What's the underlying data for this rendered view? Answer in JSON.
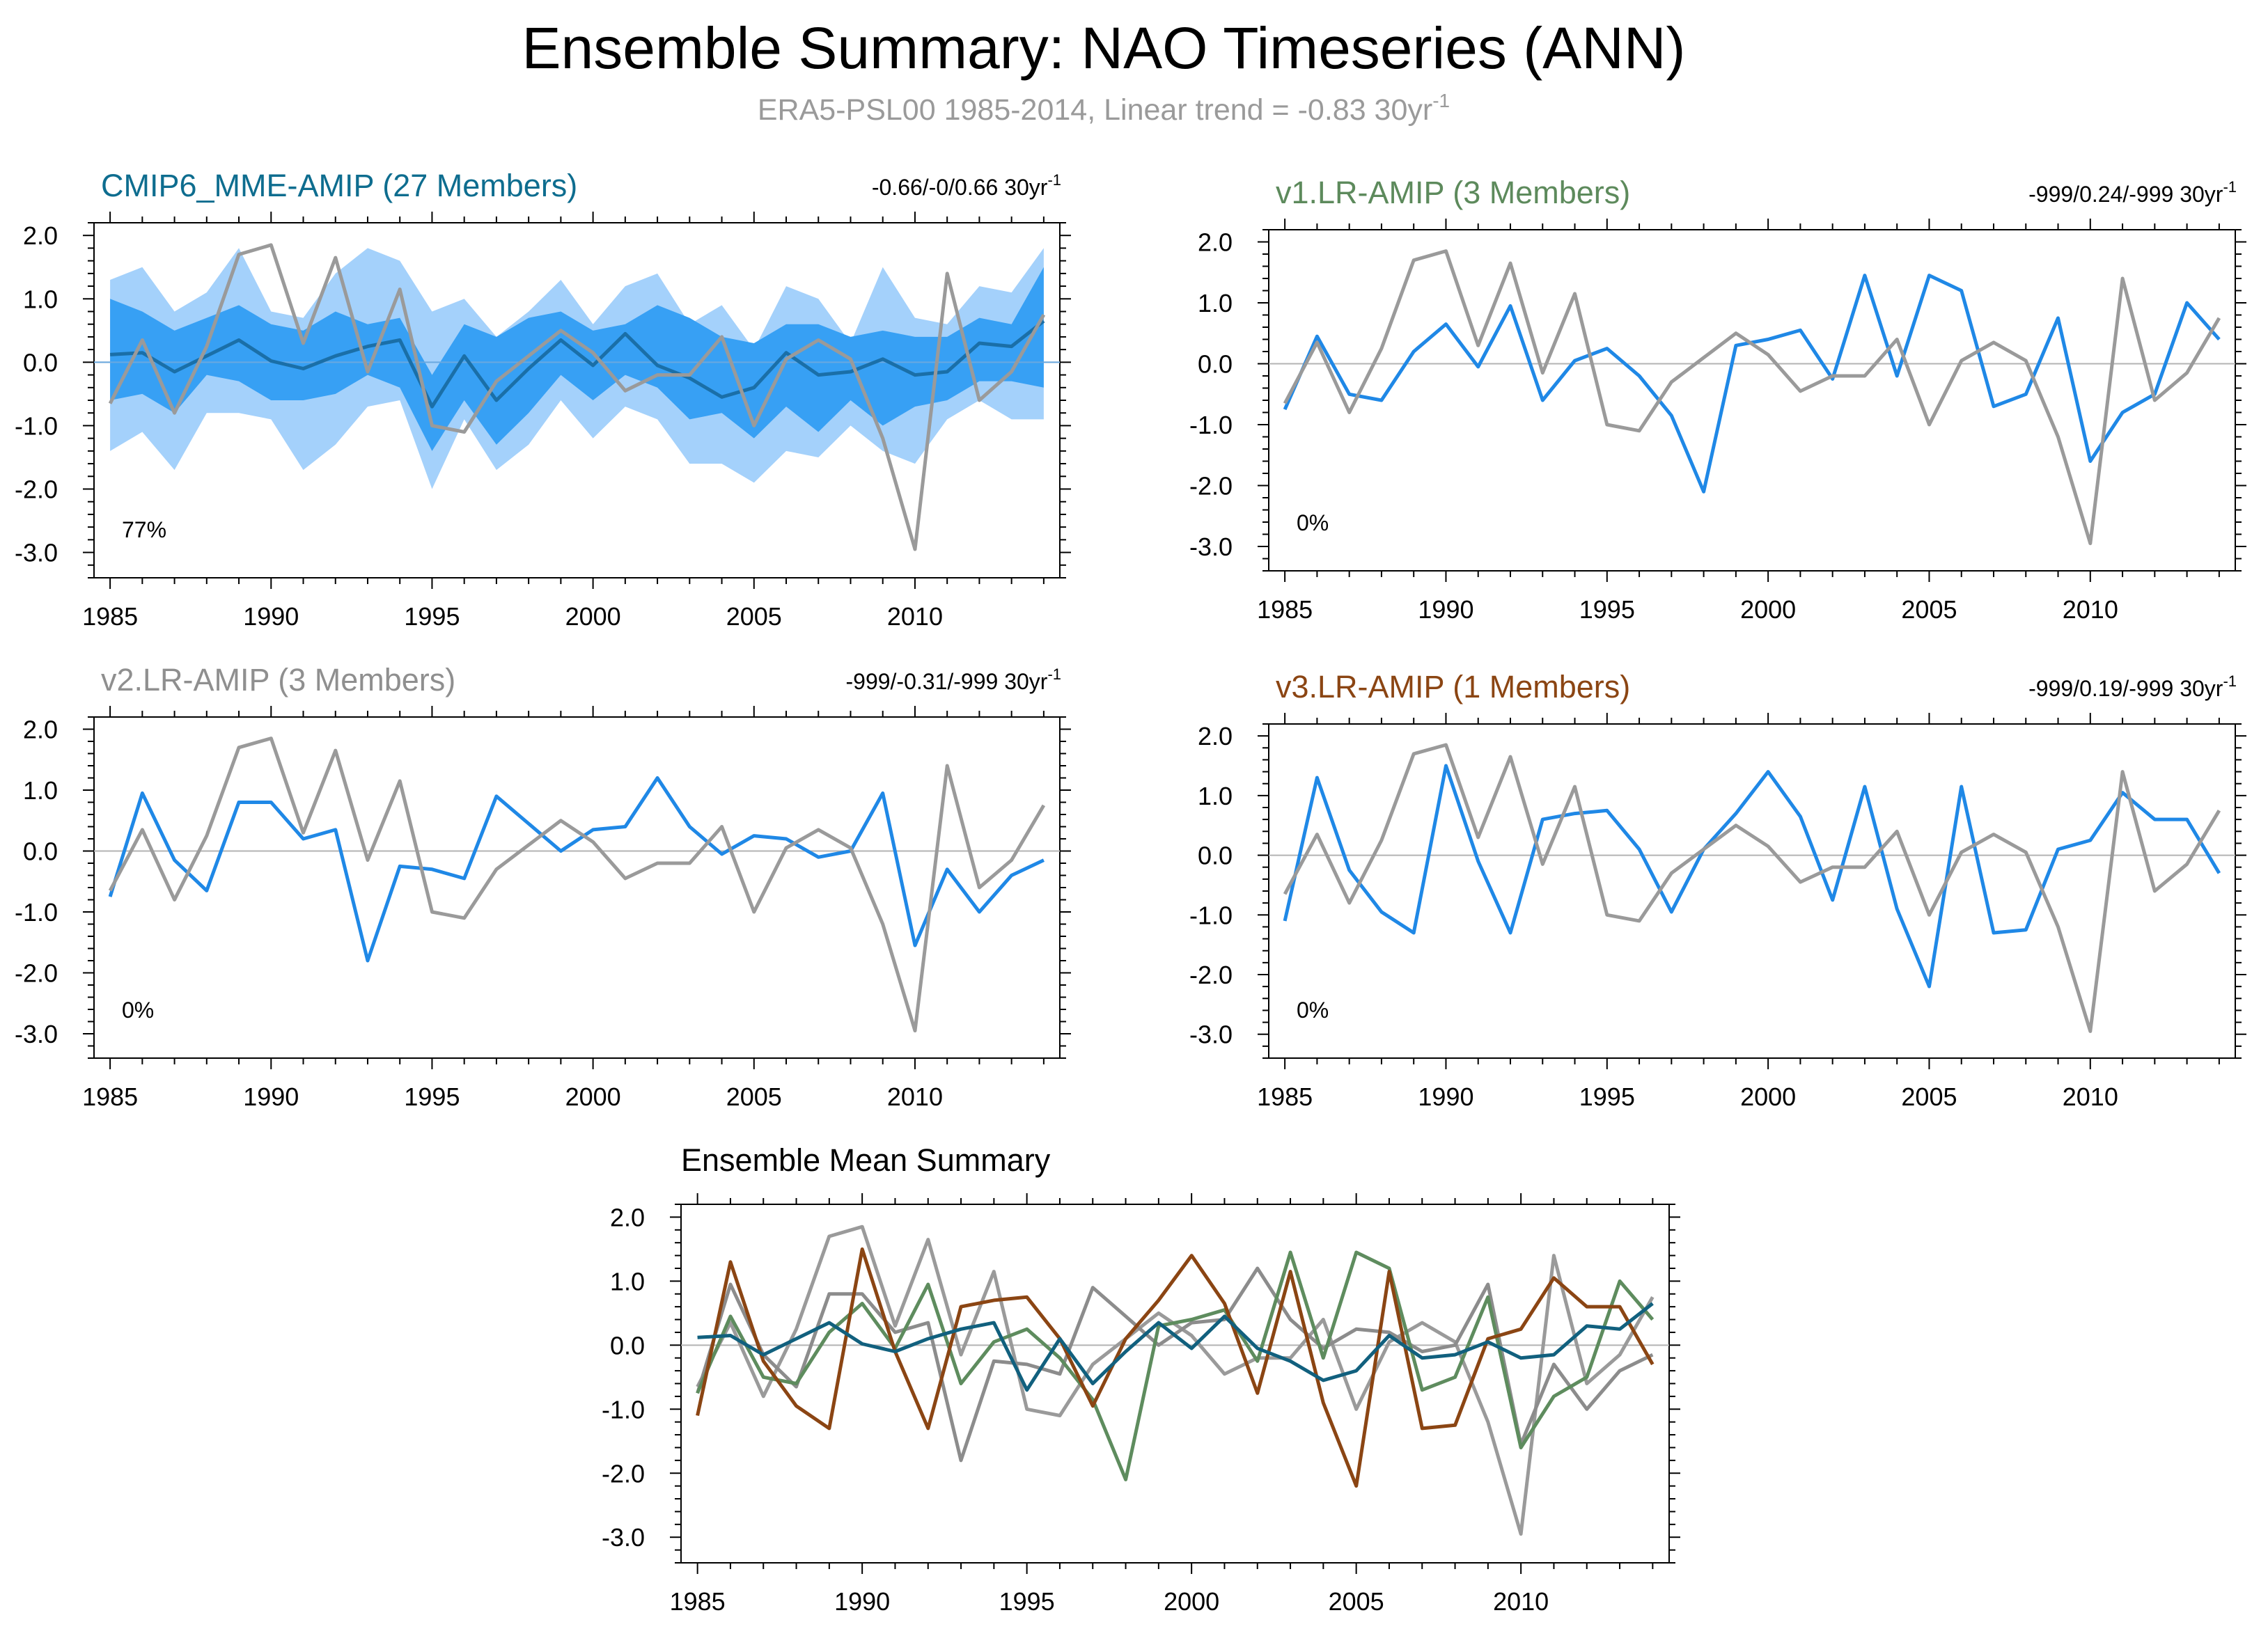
{
  "page": {
    "title": "Ensemble Summary: NAO Timeseries (ANN)",
    "subtitle": "ERA5-PSL00 1985-2014, Linear trend = -0.83 30yr",
    "subtitle_sup": "-1"
  },
  "colors": {
    "obs": "#9a9a9a",
    "blue": "#1f88e6",
    "band_outer": "#a4d1fb",
    "band_inner": "#37a0f4",
    "mme_mean": "#1a6fa8",
    "title_mme": "#0e6d8f",
    "title_v1": "#5d8a5c",
    "title_v2": "#8f8f8f",
    "title_v3": "#8b4513",
    "summary_mme": "#11607e",
    "summary_v1": "#5e8c5e",
    "summary_v2": "#8c8c8c",
    "summary_v3": "#8b4513"
  },
  "chart_data": [
    {
      "id": "mme",
      "type": "line",
      "title": "CMIP6_MME-AMIP (27 Members)",
      "title_color": "#0e6d8f",
      "trend": "-0.66/-0/0.66 30yr",
      "trend_sup": "-1",
      "percent": "77%",
      "ylim": [
        -3.4,
        2.2
      ],
      "yticks": [
        "2.0",
        "1.0",
        "0.0",
        "-1.0",
        "-2.0",
        "-3.0"
      ],
      "xticks": [
        "1985",
        "1990",
        "1995",
        "2000",
        "2005",
        "2010"
      ],
      "x": [
        1985,
        1986,
        1987,
        1988,
        1989,
        1990,
        1991,
        1992,
        1993,
        1994,
        1995,
        1996,
        1997,
        1998,
        1999,
        2000,
        2001,
        2002,
        2003,
        2004,
        2005,
        2006,
        2007,
        2008,
        2009,
        2010,
        2011,
        2012,
        2013,
        2014
      ],
      "band_outer_hi": [
        1.3,
        1.5,
        0.8,
        1.1,
        1.8,
        0.8,
        0.7,
        1.4,
        1.8,
        1.6,
        0.8,
        1.0,
        0.4,
        0.8,
        1.3,
        0.6,
        1.2,
        1.4,
        0.6,
        0.9,
        0.2,
        1.2,
        1.0,
        0.3,
        1.5,
        0.7,
        0.6,
        1.2,
        1.1,
        1.8
      ],
      "band_outer_lo": [
        -1.4,
        -1.1,
        -1.7,
        -0.8,
        -0.8,
        -0.9,
        -1.7,
        -1.3,
        -0.7,
        -0.6,
        -2.0,
        -0.9,
        -1.7,
        -1.3,
        -0.6,
        -1.2,
        -0.7,
        -0.9,
        -1.6,
        -1.6,
        -1.9,
        -1.4,
        -1.5,
        -1.0,
        -1.4,
        -1.6,
        -0.9,
        -0.6,
        -0.9,
        -0.9
      ],
      "band_inner_hi": [
        1.0,
        0.8,
        0.5,
        0.7,
        0.9,
        0.6,
        0.5,
        0.8,
        0.6,
        0.7,
        -0.2,
        0.6,
        0.4,
        0.7,
        0.8,
        0.5,
        0.6,
        0.9,
        0.7,
        0.4,
        0.3,
        0.6,
        0.6,
        0.4,
        0.5,
        0.4,
        0.4,
        0.7,
        0.6,
        1.5
      ],
      "band_inner_lo": [
        -0.6,
        -0.5,
        -0.8,
        -0.2,
        -0.3,
        -0.6,
        -0.6,
        -0.5,
        -0.2,
        -0.4,
        -1.4,
        -0.6,
        -1.3,
        -0.8,
        -0.2,
        -0.6,
        -0.2,
        -0.4,
        -0.9,
        -0.8,
        -1.2,
        -0.7,
        -1.1,
        -0.6,
        -1.0,
        -0.7,
        -0.6,
        -0.3,
        -0.3,
        -0.4
      ],
      "series": [
        {
          "color": "#1a6fa8",
          "values": [
            0.12,
            0.15,
            -0.15,
            0.1,
            0.35,
            0.02,
            -0.1,
            0.1,
            0.25,
            0.35,
            -0.7,
            0.1,
            -0.6,
            -0.1,
            0.35,
            -0.05,
            0.45,
            -0.05,
            -0.25,
            -0.55,
            -0.4,
            0.15,
            -0.2,
            -0.15,
            0.05,
            -0.2,
            -0.15,
            0.3,
            0.25,
            0.65
          ]
        },
        {
          "color": "#9a9a9a",
          "values": [
            -0.65,
            0.35,
            -0.8,
            0.25,
            1.7,
            1.85,
            0.3,
            1.65,
            -0.15,
            1.15,
            -1.0,
            -1.1,
            -0.3,
            0.1,
            0.5,
            0.15,
            -0.45,
            -0.2,
            -0.2,
            0.4,
            -1.0,
            0.05,
            0.35,
            0.05,
            -1.2,
            -2.95,
            1.4,
            -0.6,
            -0.15,
            0.75
          ]
        }
      ]
    },
    {
      "id": "v1",
      "type": "line",
      "title": "v1.LR-AMIP (3 Members)",
      "title_color": "#5d8a5c",
      "trend": "-999/0.24/-999 30yr",
      "trend_sup": "-1",
      "percent": "0%",
      "ylim": [
        -3.4,
        2.2
      ],
      "yticks": [
        "2.0",
        "1.0",
        "0.0",
        "-1.0",
        "-2.0",
        "-3.0"
      ],
      "xticks": [
        "1985",
        "1990",
        "1995",
        "2000",
        "2005",
        "2010"
      ],
      "x": [
        1985,
        1986,
        1987,
        1988,
        1989,
        1990,
        1991,
        1992,
        1993,
        1994,
        1995,
        1996,
        1997,
        1998,
        1999,
        2000,
        2001,
        2002,
        2003,
        2004,
        2005,
        2006,
        2007,
        2008,
        2009,
        2010,
        2011,
        2012,
        2013,
        2014
      ],
      "series": [
        {
          "color": "#1f88e6",
          "values": [
            -0.75,
            0.45,
            -0.5,
            -0.6,
            0.2,
            0.65,
            -0.05,
            0.95,
            -0.6,
            0.05,
            0.25,
            -0.2,
            -0.85,
            -2.1,
            0.3,
            0.4,
            0.55,
            -0.25,
            1.45,
            -0.2,
            1.45,
            1.2,
            -0.7,
            -0.5,
            0.75,
            -1.6,
            -0.8,
            -0.5,
            1.0,
            0.4
          ]
        },
        {
          "color": "#9a9a9a",
          "values": [
            -0.65,
            0.35,
            -0.8,
            0.25,
            1.7,
            1.85,
            0.3,
            1.65,
            -0.15,
            1.15,
            -1.0,
            -1.1,
            -0.3,
            0.1,
            0.5,
            0.15,
            -0.45,
            -0.2,
            -0.2,
            0.4,
            -1.0,
            0.05,
            0.35,
            0.05,
            -1.2,
            -2.95,
            1.4,
            -0.6,
            -0.15,
            0.75
          ]
        }
      ]
    },
    {
      "id": "v2",
      "type": "line",
      "title": "v2.LR-AMIP (3 Members)",
      "title_color": "#8f8f8f",
      "trend": "-999/-0.31/-999 30yr",
      "trend_sup": "-1",
      "percent": "0%",
      "ylim": [
        -3.4,
        2.2
      ],
      "yticks": [
        "2.0",
        "1.0",
        "0.0",
        "-1.0",
        "-2.0",
        "-3.0"
      ],
      "xticks": [
        "1985",
        "1990",
        "1995",
        "2000",
        "2005",
        "2010"
      ],
      "x": [
        1985,
        1986,
        1987,
        1988,
        1989,
        1990,
        1991,
        1992,
        1993,
        1994,
        1995,
        1996,
        1997,
        1998,
        1999,
        2000,
        2001,
        2002,
        2003,
        2004,
        2005,
        2006,
        2007,
        2008,
        2009,
        2010,
        2011,
        2012,
        2013,
        2014
      ],
      "series": [
        {
          "color": "#1f88e6",
          "values": [
            -0.75,
            0.95,
            -0.15,
            -0.65,
            0.8,
            0.8,
            0.2,
            0.35,
            -1.8,
            -0.25,
            -0.3,
            -0.45,
            0.9,
            0.45,
            0.0,
            0.35,
            0.4,
            1.2,
            0.4,
            -0.05,
            0.25,
            0.2,
            -0.1,
            0.0,
            0.95,
            -1.55,
            -0.3,
            -1.0,
            -0.4,
            -0.15
          ]
        },
        {
          "color": "#9a9a9a",
          "values": [
            -0.65,
            0.35,
            -0.8,
            0.25,
            1.7,
            1.85,
            0.3,
            1.65,
            -0.15,
            1.15,
            -1.0,
            -1.1,
            -0.3,
            0.1,
            0.5,
            0.15,
            -0.45,
            -0.2,
            -0.2,
            0.4,
            -1.0,
            0.05,
            0.35,
            0.05,
            -1.2,
            -2.95,
            1.4,
            -0.6,
            -0.15,
            0.75
          ]
        }
      ]
    },
    {
      "id": "v3",
      "type": "line",
      "title": "v3.LR-AMIP (1 Members)",
      "title_color": "#8b4513",
      "trend": "-999/0.19/-999 30yr",
      "trend_sup": "-1",
      "percent": "0%",
      "ylim": [
        -3.4,
        2.2
      ],
      "yticks": [
        "2.0",
        "1.0",
        "0.0",
        "-1.0",
        "-2.0",
        "-3.0"
      ],
      "xticks": [
        "1985",
        "1990",
        "1995",
        "2000",
        "2005",
        "2010"
      ],
      "x": [
        1985,
        1986,
        1987,
        1988,
        1989,
        1990,
        1991,
        1992,
        1993,
        1994,
        1995,
        1996,
        1997,
        1998,
        1999,
        2000,
        2001,
        2002,
        2003,
        2004,
        2005,
        2006,
        2007,
        2008,
        2009,
        2010,
        2011,
        2012,
        2013,
        2014
      ],
      "series": [
        {
          "color": "#1f88e6",
          "values": [
            -1.1,
            1.3,
            -0.25,
            -0.95,
            -1.3,
            1.5,
            -0.1,
            -1.3,
            0.6,
            0.7,
            0.75,
            0.1,
            -0.95,
            0.1,
            0.7,
            1.4,
            0.65,
            -0.75,
            1.15,
            -0.9,
            -2.2,
            1.15,
            -1.3,
            -1.25,
            0.1,
            0.25,
            1.05,
            0.6,
            0.6,
            -0.3
          ]
        },
        {
          "color": "#9a9a9a",
          "values": [
            -0.65,
            0.35,
            -0.8,
            0.25,
            1.7,
            1.85,
            0.3,
            1.65,
            -0.15,
            1.15,
            -1.0,
            -1.1,
            -0.3,
            0.1,
            0.5,
            0.15,
            -0.45,
            -0.2,
            -0.2,
            0.4,
            -1.0,
            0.05,
            0.35,
            0.05,
            -1.2,
            -2.95,
            1.4,
            -0.6,
            -0.15,
            0.75
          ]
        }
      ]
    },
    {
      "id": "summary",
      "type": "line",
      "title": "Ensemble Mean Summary",
      "title_color": "#000000",
      "ylim": [
        -3.4,
        2.2
      ],
      "yticks": [
        "2.0",
        "1.0",
        "0.0",
        "-1.0",
        "-2.0",
        "-3.0"
      ],
      "xticks": [
        "1985",
        "1990",
        "1995",
        "2000",
        "2005",
        "2010"
      ],
      "x": [
        1985,
        1986,
        1987,
        1988,
        1989,
        1990,
        1991,
        1992,
        1993,
        1994,
        1995,
        1996,
        1997,
        1998,
        1999,
        2000,
        2001,
        2002,
        2003,
        2004,
        2005,
        2006,
        2007,
        2008,
        2009,
        2010,
        2011,
        2012,
        2013,
        2014
      ],
      "series": [
        {
          "color": "#9a9a9a",
          "values": [
            -0.65,
            0.35,
            -0.8,
            0.25,
            1.7,
            1.85,
            0.3,
            1.65,
            -0.15,
            1.15,
            -1.0,
            -1.1,
            -0.3,
            0.1,
            0.5,
            0.15,
            -0.45,
            -0.2,
            -0.2,
            0.4,
            -1.0,
            0.05,
            0.35,
            0.05,
            -1.2,
            -2.95,
            1.4,
            -0.6,
            -0.15,
            0.75
          ]
        },
        {
          "color": "#8c8c8c",
          "values": [
            -0.75,
            0.95,
            -0.15,
            -0.65,
            0.8,
            0.8,
            0.2,
            0.35,
            -1.8,
            -0.25,
            -0.3,
            -0.45,
            0.9,
            0.45,
            0.0,
            0.35,
            0.4,
            1.2,
            0.4,
            -0.05,
            0.25,
            0.2,
            -0.1,
            0.0,
            0.95,
            -1.55,
            -0.3,
            -1.0,
            -0.4,
            -0.15
          ]
        },
        {
          "color": "#5e8c5e",
          "values": [
            -0.75,
            0.45,
            -0.5,
            -0.6,
            0.2,
            0.65,
            -0.05,
            0.95,
            -0.6,
            0.05,
            0.25,
            -0.2,
            -0.85,
            -2.1,
            0.3,
            0.4,
            0.55,
            -0.25,
            1.45,
            -0.2,
            1.45,
            1.2,
            -0.7,
            -0.5,
            0.75,
            -1.6,
            -0.8,
            -0.5,
            1.0,
            0.4
          ]
        },
        {
          "color": "#8b4513",
          "values": [
            -1.1,
            1.3,
            -0.25,
            -0.95,
            -1.3,
            1.5,
            -0.1,
            -1.3,
            0.6,
            0.7,
            0.75,
            0.1,
            -0.95,
            0.1,
            0.7,
            1.4,
            0.65,
            -0.75,
            1.15,
            -0.9,
            -2.2,
            1.15,
            -1.3,
            -1.25,
            0.1,
            0.25,
            1.05,
            0.6,
            0.6,
            -0.3
          ]
        },
        {
          "color": "#11607e",
          "values": [
            0.12,
            0.15,
            -0.15,
            0.1,
            0.35,
            0.02,
            -0.1,
            0.1,
            0.25,
            0.35,
            -0.7,
            0.1,
            -0.6,
            -0.1,
            0.35,
            -0.05,
            0.45,
            -0.05,
            -0.25,
            -0.55,
            -0.4,
            0.15,
            -0.2,
            -0.15,
            0.05,
            -0.2,
            -0.15,
            0.3,
            0.25,
            0.65
          ]
        }
      ]
    }
  ]
}
